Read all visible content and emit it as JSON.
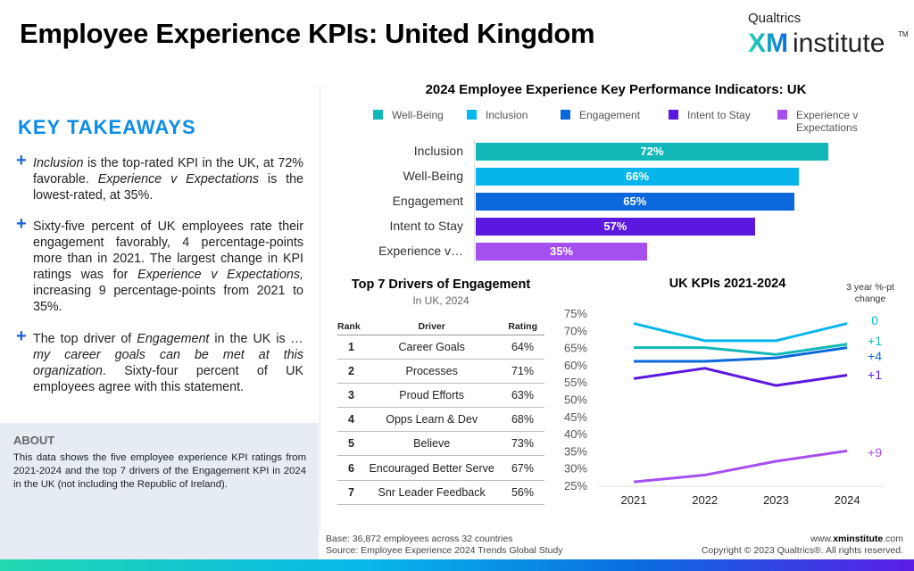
{
  "title": "Employee Experience KPIs: United Kingdom",
  "logo": {
    "top": "Qualtrics",
    "xm": "XM",
    "institute": "institute",
    "tm": "TM"
  },
  "key_takeaways": {
    "heading": "KEY TAKEAWAYS",
    "items": [
      [
        {
          "t": "Inclusion",
          "i": true
        },
        {
          "t": " is the top-rated KPI in the UK, at 72% favorable. "
        },
        {
          "t": "Experience v Expectations",
          "i": true
        },
        {
          "t": " is the lowest-rated, at 35%."
        }
      ],
      [
        {
          "t": "Sixty-five percent of UK employees rate their engagement favorably, 4 percentage-points more than in 2021. The largest change in KPI ratings was for "
        },
        {
          "t": "Experience v Expectations,",
          "i": true
        },
        {
          "t": " increasing 9 percentage-points from 2021 to 35%."
        }
      ],
      [
        {
          "t": "The top driver of "
        },
        {
          "t": "Engagement",
          "i": true
        },
        {
          "t": " in the UK is "
        },
        {
          "t": "…my career goals can be met at this organization",
          "i": true
        },
        {
          "t": ". Sixty-four percent of UK employees agree with this statement."
        }
      ]
    ]
  },
  "about": {
    "heading": "ABOUT",
    "text": "This data shows the five employee experience KPI ratings from 2021-2024 and the top 7 drivers of the Engagement KPI in 2024 in the UK (not including the Republic of Ireland)."
  },
  "drivers": {
    "title": "Top 7 Drivers of Engagement",
    "subtitle": "In UK, 2024",
    "headers": [
      "Rank",
      "Driver",
      "Rating"
    ],
    "rows": [
      [
        "1",
        "Career Goals",
        "64%"
      ],
      [
        "2",
        "Processes",
        "71%"
      ],
      [
        "3",
        "Proud Efforts",
        "63%"
      ],
      [
        "4",
        "Opps Learn & Dev",
        "68%"
      ],
      [
        "5",
        "Believe",
        "73%"
      ],
      [
        "6",
        "Encouraged Better Serve",
        "67%"
      ],
      [
        "7",
        "Snr Leader Feedback",
        "56%"
      ]
    ]
  },
  "footer": {
    "base": "Base: 36,872 employees across 32 countries",
    "source": "Source: Employee Experience 2024 Trends Global Study",
    "url_pre": "www.",
    "url_bold": "xminstitute",
    "url_post": ".com",
    "copyright": "Copyright © 2023 Qualtrics®. All rights reserved."
  },
  "chart_data": [
    {
      "type": "bar",
      "orientation": "horizontal",
      "title": "2024 Employee Experience Key Performance Indicators: UK",
      "legend": [
        {
          "name": "Well-Being",
          "color": "#12b8b8"
        },
        {
          "name": "Inclusion",
          "color": "#06b5ea"
        },
        {
          "name": "Engagement",
          "color": "#0b67dc"
        },
        {
          "name": "Intent to Stay",
          "color": "#5b18e0"
        },
        {
          "name": "Experience v Expectations",
          "color": "#a64ff0"
        }
      ],
      "categories": [
        "Inclusion",
        "Well-Being",
        "Engagement",
        "Intent to Stay",
        "Experience v…"
      ],
      "values": [
        72,
        66,
        65,
        57,
        35
      ],
      "labels": [
        "72%",
        "66%",
        "65%",
        "57%",
        "35%"
      ],
      "colors": [
        "#12b8b8",
        "#06b5ea",
        "#0b67dc",
        "#5b18e0",
        "#a64ff0"
      ],
      "xlim": [
        0,
        72
      ],
      "legend_position": "top"
    },
    {
      "type": "line",
      "title": "UK KPIs 2021-2024",
      "annotation_title": "3 year %-pt change",
      "x": [
        "2021",
        "2022",
        "2023",
        "2024"
      ],
      "ylim": [
        25,
        75
      ],
      "yticks": [
        "75%",
        "70%",
        "65%",
        "60%",
        "55%",
        "50%",
        "45%",
        "40%",
        "35%",
        "30%",
        "25%"
      ],
      "series": [
        {
          "values": [
            72,
            67,
            67,
            72
          ],
          "color": "#06b5ea",
          "change": "0"
        },
        {
          "values": [
            65,
            65,
            63,
            66
          ],
          "color": "#12b8b8",
          "change": "+1"
        },
        {
          "values": [
            61,
            61,
            62,
            65
          ],
          "color": "#0b67dc",
          "change": "+4"
        },
        {
          "values": [
            56,
            59,
            54,
            57
          ],
          "color": "#5b18e0",
          "change": "+1"
        },
        {
          "values": [
            26,
            28,
            32,
            35
          ],
          "color": "#a64ff0",
          "change": "+9"
        }
      ],
      "grid": false
    }
  ]
}
